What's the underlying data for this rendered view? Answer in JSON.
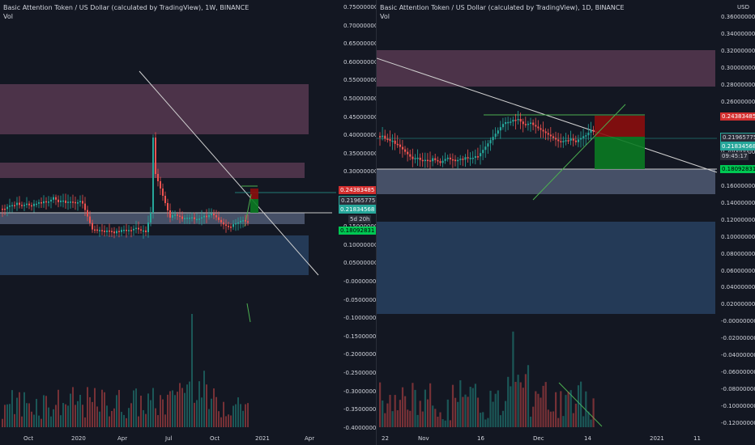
{
  "left_chart": {
    "title": "Basic Attention Token / US Dollar (calculated by TradingView), 1W, BINANCE",
    "volume_label": "Vol",
    "y_ticks": [
      "0.75000000",
      "0.70000000",
      "0.65000000",
      "0.60000000",
      "0.55000000",
      "0.50000000",
      "0.45000000",
      "0.40000000",
      "0.35000000",
      "0.30000000",
      "0.25000000",
      "0.20000000",
      "0.15000000",
      "0.10000000",
      "0.05000000",
      "-0.00000000",
      "-0.05000000",
      "-0.10000000",
      "-0.15000000",
      "-0.20000000",
      "-0.25000000",
      "-0.30000000",
      "-0.35000000",
      "-0.40000000"
    ],
    "x_ticks": [
      "Oct",
      "2020",
      "Apr",
      "Jul",
      "Oct",
      "2021",
      "Apr"
    ],
    "price_tags": {
      "red": "0.24383485",
      "teal1": "0.21965775",
      "teal2": "0.21834568",
      "countdown": "5d 20h",
      "green": "0.18092831"
    }
  },
  "right_chart": {
    "title": "Basic Attention Token / US Dollar (calculated by TradingView), 1D, BINANCE",
    "volume_label": "Vol",
    "currency": "USD",
    "y_ticks": [
      "0.36000000",
      "0.34000000",
      "0.32000000",
      "0.30000000",
      "0.28000000",
      "0.26000000",
      "0.24000000",
      "0.22000000",
      "0.20000000",
      "0.18000000",
      "0.16000000",
      "0.14000000",
      "0.12000000",
      "0.10000000",
      "0.08000000",
      "0.06000000",
      "0.04000000",
      "0.02000000",
      "-0.00000000",
      "-0.02000000",
      "-0.04000000",
      "-0.06000000",
      "-0.08000000",
      "-0.10000000",
      "-0.12000000"
    ],
    "x_ticks": [
      "22",
      "Nov",
      "16",
      "Dec",
      "14",
      "2021",
      "11"
    ],
    "price_tags": {
      "red": "0.24383485",
      "teal1": "0.21965775",
      "teal2": "0.21834568",
      "countdown": "09:45:17",
      "green": "0.18092831"
    }
  },
  "colors": {
    "background": "#131722",
    "up": "#26a69a",
    "down": "#ef5350",
    "resistance_zone": "#7b4a6a",
    "support_zone": "#5d6a85",
    "deep_zone": "#2c4a6e",
    "target": "#8b0d0d",
    "stop": "#0b7a22"
  }
}
